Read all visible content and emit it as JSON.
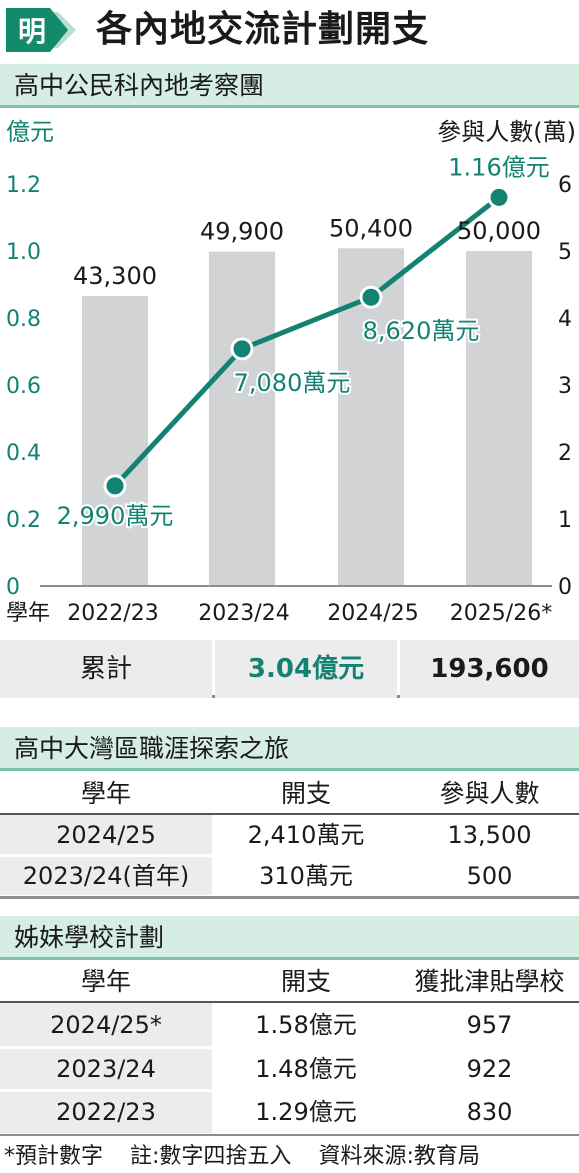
{
  "header": {
    "logo_char": "明",
    "title": "各內地交流計劃開支"
  },
  "section1": {
    "title": "高中公民科內地考察團"
  },
  "chart_data": {
    "type": "bar+line",
    "left_axis_title": "億元",
    "right_axis_title": "參與人數(萬)",
    "left_ticks": [
      "0",
      "0.2",
      "0.4",
      "0.6",
      "0.8",
      "1.0",
      "1.2"
    ],
    "right_ticks": [
      "0",
      "1",
      "2",
      "3",
      "4",
      "5",
      "6"
    ],
    "ylim_left": [
      0,
      1.2
    ],
    "ylim_right": [
      0,
      6
    ],
    "x_label": "學年",
    "categories": [
      "2022/23",
      "2023/24",
      "2024/25",
      "2025/26*"
    ],
    "bars": {
      "axis": "right",
      "values": [
        43300,
        49900,
        50400,
        50000
      ],
      "labels": [
        "43,300",
        "49,900",
        "50,400",
        "50,000"
      ],
      "color": "#d2d3d5"
    },
    "line": {
      "axis": "left",
      "values": [
        0.299,
        0.708,
        0.862,
        1.16
      ],
      "labels": [
        "2,990萬元",
        "7,080萬元",
        "8,620萬元",
        "1.16億元"
      ],
      "color": "#138272"
    },
    "legend": "none",
    "grid": false
  },
  "total": {
    "label": "累計",
    "amount": "3.04億元",
    "participants": "193,600"
  },
  "section2": {
    "title": "高中大灣區職涯探索之旅",
    "headers": [
      "學年",
      "開支",
      "參與人數"
    ],
    "rows": [
      [
        "2024/25",
        "2,410萬元",
        "13,500"
      ],
      [
        "2023/24(首年)",
        "310萬元",
        "500"
      ]
    ]
  },
  "section3": {
    "title": "姊妹學校計劃",
    "headers": [
      "學年",
      "開支",
      "獲批津貼學校"
    ],
    "rows": [
      [
        "2024/25*",
        "1.58億元",
        "957"
      ],
      [
        "2023/24",
        "1.48億元",
        "922"
      ],
      [
        "2022/23",
        "1.29億元",
        "830"
      ]
    ]
  },
  "footer": {
    "note1": "*預計數字",
    "note2": "註:數字四捨五入",
    "note3": "資料來源:教育局"
  },
  "colors": {
    "accent": "#138272",
    "section_bg": "#d6ede4",
    "section_border": "#7ec3aa",
    "bar": "#d2d3d5",
    "row_shade": "#ececec"
  }
}
